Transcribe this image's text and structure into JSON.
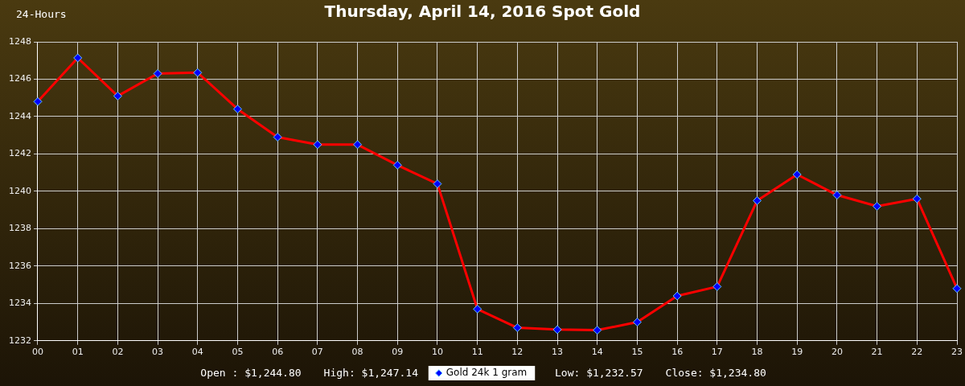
{
  "chart_data": {
    "type": "line",
    "title": "Thursday, April 14, 2016 Spot Gold",
    "annotations": [
      "24-Hours",
      "Open : $1,244.80",
      "High: $1,247.14",
      "Low: $1,232.57",
      "Close: $1,234.80"
    ],
    "categories": [
      "00",
      "01",
      "02",
      "03",
      "04",
      "05",
      "06",
      "07",
      "08",
      "09",
      "10",
      "11",
      "12",
      "13",
      "14",
      "15",
      "16",
      "17",
      "18",
      "19",
      "20",
      "21",
      "22",
      "23"
    ],
    "series": [
      {
        "name": "Gold 24k 1 gram",
        "color": "#ff0000",
        "values": [
          1244.8,
          1247.14,
          1245.1,
          1246.3,
          1246.35,
          1244.4,
          1242.9,
          1242.5,
          1242.5,
          1241.4,
          1240.4,
          1233.7,
          1232.7,
          1232.6,
          1232.57,
          1233.0,
          1234.4,
          1234.9,
          1239.5,
          1240.9,
          1239.8,
          1239.2,
          1239.6,
          1234.8
        ]
      }
    ],
    "ylim": [
      1232,
      1248
    ],
    "yticks": [
      1232,
      1234,
      1236,
      1238,
      1240,
      1242,
      1244,
      1246,
      1248
    ],
    "grid": true,
    "legend": "bottom",
    "marker": "diamond",
    "line_style": "solid"
  }
}
